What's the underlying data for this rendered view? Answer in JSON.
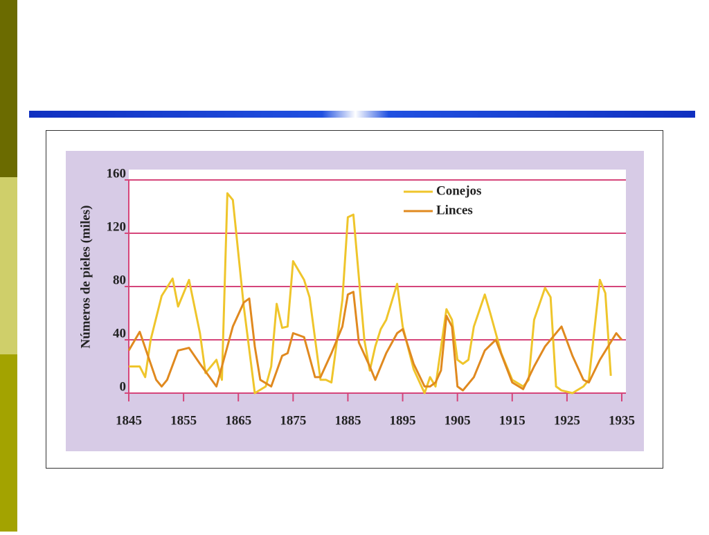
{
  "chart_data": {
    "type": "line",
    "ylabel": "Números de pieles (miles)",
    "xlim": [
      1845,
      1935
    ],
    "xticks": [
      1845,
      1855,
      1865,
      1875,
      1885,
      1895,
      1905,
      1915,
      1925,
      1935
    ],
    "ylim": [
      0,
      160
    ],
    "yticks": [
      0,
      40,
      80,
      120,
      160
    ],
    "grid": true,
    "legend": "upper right",
    "series": [
      {
        "name": "Conejos",
        "color": "#efc52b",
        "x": [
          1845,
          1847,
          1848,
          1849,
          1851,
          1853,
          1854,
          1856,
          1858,
          1859,
          1861,
          1862,
          1863,
          1864,
          1866,
          1868,
          1870,
          1871,
          1872,
          1873,
          1874,
          1875,
          1877,
          1878,
          1880,
          1881,
          1882,
          1884,
          1885,
          1886,
          1888,
          1889,
          1890,
          1891,
          1892,
          1894,
          1895,
          1897,
          1899,
          1900,
          1901,
          1903,
          1904,
          1905,
          1906,
          1907,
          1908,
          1910,
          1911,
          1913,
          1915,
          1917,
          1918,
          1919,
          1921,
          1922,
          1923,
          1924,
          1926,
          1928,
          1929,
          1931,
          1932,
          1933
        ],
        "values": [
          20,
          20,
          12,
          40,
          73,
          86,
          65,
          85,
          45,
          15,
          25,
          10,
          150,
          145,
          65,
          0,
          5,
          20,
          67,
          49,
          50,
          99,
          85,
          72,
          10,
          10,
          8,
          70,
          132,
          134,
          40,
          17,
          35,
          48,
          55,
          82,
          50,
          18,
          0,
          12,
          5,
          63,
          55,
          25,
          22,
          25,
          50,
          74,
          60,
          30,
          10,
          5,
          10,
          55,
          79,
          72,
          5,
          2,
          0,
          5,
          10,
          85,
          75,
          13
        ]
      },
      {
        "name": "Linces",
        "color": "#e0891f",
        "x": [
          1845,
          1847,
          1850,
          1851,
          1852,
          1854,
          1856,
          1858,
          1861,
          1864,
          1866,
          1867,
          1868,
          1869,
          1871,
          1873,
          1874,
          1875,
          1877,
          1879,
          1880,
          1882,
          1884,
          1885,
          1886,
          1887,
          1889,
          1890,
          1892,
          1894,
          1895,
          1897,
          1899,
          1900,
          1901,
          1902,
          1903,
          1904,
          1905,
          1906,
          1908,
          1910,
          1912,
          1915,
          1917,
          1919,
          1921,
          1924,
          1926,
          1928,
          1929,
          1931,
          1934,
          1935
        ],
        "values": [
          32,
          46,
          10,
          5,
          10,
          32,
          34,
          22,
          5,
          50,
          68,
          71,
          35,
          10,
          5,
          28,
          30,
          45,
          42,
          12,
          12,
          30,
          50,
          74,
          76,
          38,
          20,
          10,
          30,
          45,
          48,
          22,
          5,
          5,
          8,
          17,
          58,
          50,
          5,
          2,
          12,
          32,
          40,
          8,
          3,
          20,
          35,
          50,
          28,
          10,
          8,
          25,
          45,
          40
        ]
      }
    ]
  }
}
